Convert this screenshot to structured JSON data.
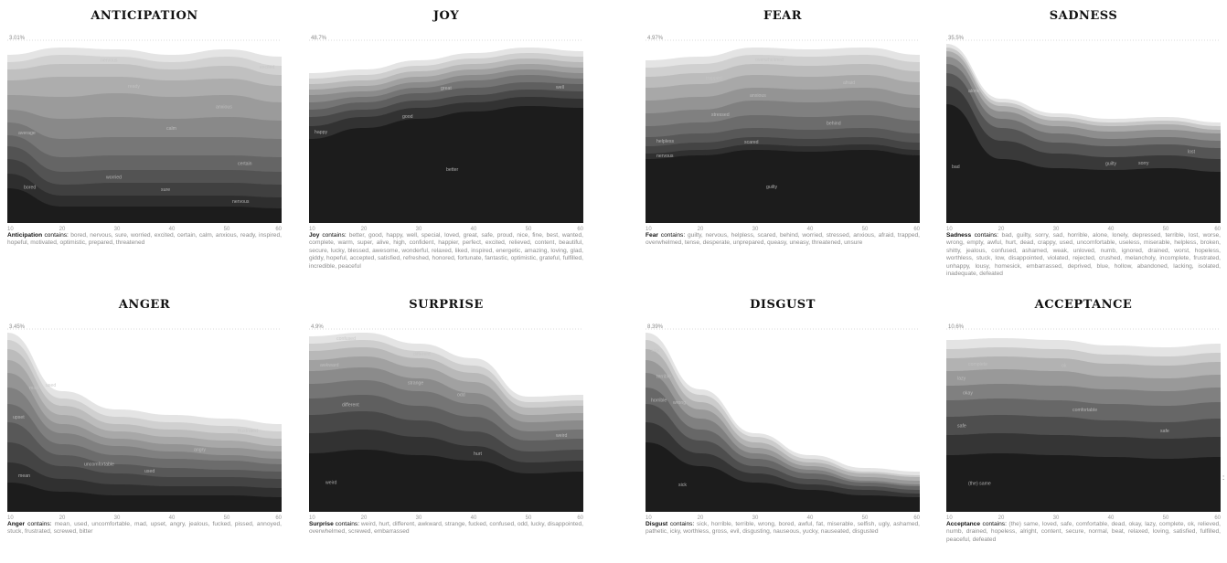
{
  "chart_data": [
    {
      "type": "area",
      "title": "ANTICIPATION",
      "max_label": "3.01%",
      "x": [
        10,
        20,
        30,
        40,
        50,
        60
      ],
      "boundaries": [
        [
          0.92,
          0.96,
          0.95,
          0.92,
          0.95,
          0.91
        ],
        [
          0.88,
          0.92,
          0.91,
          0.88,
          0.91,
          0.86
        ],
        [
          0.84,
          0.87,
          0.87,
          0.84,
          0.86,
          0.81
        ],
        [
          0.78,
          0.8,
          0.8,
          0.78,
          0.79,
          0.75
        ],
        [
          0.7,
          0.69,
          0.71,
          0.69,
          0.7,
          0.66
        ],
        [
          0.62,
          0.57,
          0.58,
          0.57,
          0.58,
          0.56
        ],
        [
          0.55,
          0.46,
          0.47,
          0.47,
          0.47,
          0.46
        ],
        [
          0.48,
          0.36,
          0.37,
          0.37,
          0.37,
          0.36
        ],
        [
          0.42,
          0.28,
          0.29,
          0.29,
          0.29,
          0.28
        ],
        [
          0.35,
          0.21,
          0.22,
          0.22,
          0.22,
          0.21
        ],
        [
          0.27,
          0.15,
          0.15,
          0.15,
          0.15,
          0.14
        ],
        [
          0.19,
          0.09,
          0.09,
          0.09,
          0.09,
          0.08
        ]
      ],
      "series_labels": [
        {
          "text": "nervous",
          "x": 27,
          "band": 2
        },
        {
          "text": "excited",
          "x": 56,
          "band": 2
        },
        {
          "text": "ready",
          "x": 32,
          "band": 4
        },
        {
          "text": "anxious",
          "x": 48,
          "band": 5
        },
        {
          "text": "calm",
          "x": 39,
          "band": 6
        },
        {
          "text": "average",
          "x": 12,
          "band": 7
        },
        {
          "text": "certain",
          "x": 52,
          "band": 8
        },
        {
          "text": "worried",
          "x": 28,
          "band": 9
        },
        {
          "text": "sure",
          "x": 38,
          "band": 10
        },
        {
          "text": "bored",
          "x": 13,
          "band": 11
        },
        {
          "text": "nervous",
          "x": 51,
          "band": 11
        }
      ],
      "description_term": "Anticipation",
      "description_contains": "contains:",
      "description_words": "bored, nervous, sure, worried, excited, certain, calm, anxious, ready, inspired, hopeful, motivated, optimistic, prepared, threatened"
    },
    {
      "type": "area",
      "title": "JOY",
      "max_label": "48.7%",
      "x": [
        10,
        20,
        30,
        40,
        50,
        60
      ],
      "boundaries": [
        [
          0.82,
          0.84,
          0.89,
          0.93,
          0.96,
          0.94
        ],
        [
          0.79,
          0.81,
          0.86,
          0.9,
          0.93,
          0.91
        ],
        [
          0.76,
          0.78,
          0.83,
          0.87,
          0.9,
          0.88
        ],
        [
          0.73,
          0.75,
          0.8,
          0.84,
          0.87,
          0.85
        ],
        [
          0.7,
          0.72,
          0.77,
          0.81,
          0.84,
          0.82
        ],
        [
          0.66,
          0.69,
          0.74,
          0.78,
          0.81,
          0.79
        ],
        [
          0.62,
          0.66,
          0.71,
          0.74,
          0.77,
          0.76
        ],
        [
          0.58,
          0.62,
          0.67,
          0.7,
          0.73,
          0.72
        ],
        [
          0.53,
          0.58,
          0.63,
          0.66,
          0.69,
          0.68
        ],
        [
          0.46,
          0.52,
          0.57,
          0.61,
          0.64,
          0.63
        ]
      ],
      "series_labels": [
        {
          "text": "great",
          "x": 34,
          "band": 6
        },
        {
          "text": "well",
          "x": 55,
          "band": 7
        },
        {
          "text": "happy",
          "x": 11,
          "band": 9
        },
        {
          "text": "good",
          "x": 27,
          "band": 9
        },
        {
          "text": "better",
          "x": 35,
          "band": 10
        }
      ],
      "description_term": "Joy",
      "description_contains": "contains:",
      "description_words": "better, good, happy, well, special, loved, great, safe, proud, nice, fine, best, wanted, complete, warm, super, alive, high, confident, happier, perfect, excited, relieved, content, beautiful, secure, lucky, blessed, awesome, wonderful, relaxed, liked, inspired, energetic, amazing, loving, glad, giddy, hopeful, accepted, satisfied, refreshed, honored, fortunate, fantastic, optimistic, grateful, fulfilled, incredible, peaceful"
    },
    {
      "type": "area",
      "title": "FEAR",
      "max_label": "4.97%",
      "x": [
        10,
        20,
        30,
        40,
        50,
        60
      ],
      "boundaries": [
        [
          0.89,
          0.91,
          0.96,
          0.95,
          0.96,
          0.92
        ],
        [
          0.85,
          0.87,
          0.92,
          0.91,
          0.92,
          0.88
        ],
        [
          0.8,
          0.82,
          0.87,
          0.86,
          0.87,
          0.83
        ],
        [
          0.74,
          0.76,
          0.81,
          0.8,
          0.81,
          0.77
        ],
        [
          0.67,
          0.69,
          0.74,
          0.73,
          0.74,
          0.7
        ],
        [
          0.6,
          0.62,
          0.67,
          0.66,
          0.67,
          0.63
        ],
        [
          0.53,
          0.55,
          0.59,
          0.58,
          0.59,
          0.56
        ],
        [
          0.47,
          0.49,
          0.52,
          0.51,
          0.52,
          0.49
        ],
        [
          0.42,
          0.44,
          0.47,
          0.46,
          0.47,
          0.44
        ],
        [
          0.38,
          0.4,
          0.43,
          0.42,
          0.43,
          0.4
        ],
        [
          0.35,
          0.37,
          0.4,
          0.39,
          0.4,
          0.37
        ]
      ],
      "series_labels": [
        {
          "text": "overwhelmed",
          "x": 30,
          "band": 2
        },
        {
          "text": "trapped",
          "x": 21,
          "band": 3
        },
        {
          "text": "afraid",
          "x": 46,
          "band": 4
        },
        {
          "text": "anxious",
          "x": 29,
          "band": 5
        },
        {
          "text": "stressed",
          "x": 22,
          "band": 6
        },
        {
          "text": "behind",
          "x": 43,
          "band": 7
        },
        {
          "text": "helpless",
          "x": 12,
          "band": 8
        },
        {
          "text": "scared",
          "x": 28,
          "band": 9
        },
        {
          "text": "nervous",
          "x": 12,
          "band": 10
        },
        {
          "text": "guilty",
          "x": 32,
          "band": 11
        }
      ],
      "description_term": "Fear",
      "description_contains": "contains:",
      "description_words": "guilty, nervous, helpless, scared, behind, worried, stressed, anxious, afraid, trapped, overwhelmed, tense, desperate, unprepared, queasy, uneasy, threatened, unsure"
    },
    {
      "type": "area",
      "title": "SADNESS",
      "max_label": "35.5%",
      "x": [
        10,
        20,
        30,
        40,
        50,
        60
      ],
      "boundaries": [
        [
          0.98,
          0.68,
          0.6,
          0.57,
          0.58,
          0.55
        ],
        [
          0.96,
          0.66,
          0.58,
          0.55,
          0.56,
          0.53
        ],
        [
          0.94,
          0.64,
          0.56,
          0.53,
          0.54,
          0.51
        ],
        [
          0.91,
          0.61,
          0.53,
          0.5,
          0.51,
          0.49
        ],
        [
          0.87,
          0.57,
          0.49,
          0.46,
          0.47,
          0.45
        ],
        [
          0.82,
          0.52,
          0.44,
          0.42,
          0.43,
          0.41
        ],
        [
          0.75,
          0.45,
          0.38,
          0.36,
          0.37,
          0.35
        ],
        [
          0.65,
          0.35,
          0.3,
          0.29,
          0.3,
          0.28
        ]
      ],
      "series_labels": [
        {
          "text": "alone",
          "x": 14,
          "band": 5
        },
        {
          "text": "lost",
          "x": 54,
          "band": 6
        },
        {
          "text": "sorry",
          "x": 45,
          "band": 7
        },
        {
          "text": "guilty",
          "x": 39,
          "band": 7
        },
        {
          "text": "bad",
          "x": 11,
          "band": 8
        }
      ],
      "description_term": "Sadness",
      "description_contains": "contains:",
      "description_words": "bad, guilty, sorry, sad, horrible, alone, lonely, depressed, terrible, lost, worse, wrong, empty, awful, hurt, dead, crappy, used, uncomfortable, useless, miserable, helpless, broken, shitty, jealous, confused, ashamed, weak, unloved, numb, ignored, drained, worst, hopeless, worthless, stuck, low, disappointed, violated, rejected, crushed, melancholy, incomplete, frustrated, unhappy, lousy, homesick, embarrassed, deprived, blue, hollow, abandoned, lacking, isolated, inadequate, defeated"
    },
    {
      "type": "area",
      "title": "ANGER",
      "max_label": "3.45%",
      "x": [
        10,
        20,
        30,
        40,
        50,
        60
      ],
      "boundaries": [
        [
          0.98,
          0.66,
          0.56,
          0.53,
          0.51,
          0.48
        ],
        [
          0.94,
          0.62,
          0.52,
          0.49,
          0.47,
          0.44
        ],
        [
          0.89,
          0.58,
          0.48,
          0.45,
          0.43,
          0.4
        ],
        [
          0.83,
          0.53,
          0.44,
          0.41,
          0.39,
          0.36
        ],
        [
          0.76,
          0.48,
          0.4,
          0.37,
          0.35,
          0.33
        ],
        [
          0.68,
          0.43,
          0.36,
          0.33,
          0.31,
          0.29
        ],
        [
          0.59,
          0.37,
          0.31,
          0.29,
          0.28,
          0.26
        ],
        [
          0.49,
          0.31,
          0.26,
          0.24,
          0.23,
          0.22
        ],
        [
          0.38,
          0.25,
          0.21,
          0.19,
          0.19,
          0.18
        ],
        [
          0.27,
          0.18,
          0.15,
          0.14,
          0.14,
          0.13
        ],
        [
          0.16,
          0.11,
          0.09,
          0.09,
          0.09,
          0.08
        ]
      ],
      "series_labels": [
        {
          "text": "used",
          "x": 17,
          "band": 2
        },
        {
          "text": "frustrated",
          "x": 52,
          "band": 2
        },
        {
          "text": "mad",
          "x": 14,
          "band": 4
        },
        {
          "text": "angry",
          "x": 44,
          "band": 5
        },
        {
          "text": "upset",
          "x": 11,
          "band": 7
        },
        {
          "text": "uncomfortable",
          "x": 24,
          "band": 8
        },
        {
          "text": "used",
          "x": 35,
          "band": 8
        },
        {
          "text": "mean",
          "x": 12,
          "band": 10
        }
      ],
      "description_term": "Anger",
      "description_contains": "contains:",
      "description_words": "mean, used, uncomfortable, mad, upset, angry, jealous, fucked, pissed, annoyed, stuck, frustrated, screwed, bitter"
    },
    {
      "type": "area",
      "title": "SURPRISE",
      "max_label": "4.9%",
      "x": [
        10,
        20,
        30,
        40,
        50,
        60
      ],
      "boundaries": [
        [
          0.96,
          0.98,
          0.92,
          0.84,
          0.63,
          0.64
        ],
        [
          0.92,
          0.94,
          0.88,
          0.8,
          0.6,
          0.61
        ],
        [
          0.88,
          0.9,
          0.84,
          0.76,
          0.57,
          0.58
        ],
        [
          0.83,
          0.85,
          0.79,
          0.71,
          0.53,
          0.54
        ],
        [
          0.77,
          0.79,
          0.73,
          0.65,
          0.49,
          0.5
        ],
        [
          0.7,
          0.72,
          0.66,
          0.59,
          0.44,
          0.45
        ],
        [
          0.62,
          0.64,
          0.58,
          0.52,
          0.39,
          0.4
        ],
        [
          0.53,
          0.55,
          0.5,
          0.44,
          0.33,
          0.34
        ],
        [
          0.43,
          0.45,
          0.41,
          0.36,
          0.27,
          0.28
        ],
        [
          0.32,
          0.34,
          0.31,
          0.28,
          0.21,
          0.22
        ]
      ],
      "series_labels": [
        {
          "text": "confused",
          "x": 15,
          "band": 1
        },
        {
          "text": "different",
          "x": 29,
          "band": 2
        },
        {
          "text": "awkward",
          "x": 12,
          "band": 4
        },
        {
          "text": "strange",
          "x": 28,
          "band": 5
        },
        {
          "text": "odd",
          "x": 37,
          "band": 5
        },
        {
          "text": "weird",
          "x": 55,
          "band": 6
        },
        {
          "text": "different",
          "x": 16,
          "band": 7
        },
        {
          "text": "hurt",
          "x": 40,
          "band": 9
        },
        {
          "text": "weird",
          "x": 13,
          "band": 10
        }
      ],
      "description_term": "Surprise",
      "description_contains": "contains:",
      "description_words": "weird, hurt, different, awkward, strange, fucked, confused, odd, lucky, disappointed, overwhelmed, screwed, embarrassed"
    },
    {
      "type": "area",
      "title": "DISGUST",
      "max_label": "8.39%",
      "x": [
        10,
        20,
        30,
        40,
        50,
        60
      ],
      "boundaries": [
        [
          0.98,
          0.67,
          0.43,
          0.31,
          0.24,
          0.22
        ],
        [
          0.94,
          0.64,
          0.41,
          0.29,
          0.22,
          0.2
        ],
        [
          0.89,
          0.6,
          0.38,
          0.27,
          0.21,
          0.19
        ],
        [
          0.83,
          0.56,
          0.35,
          0.25,
          0.19,
          0.17
        ],
        [
          0.76,
          0.51,
          0.32,
          0.23,
          0.17,
          0.15
        ],
        [
          0.68,
          0.45,
          0.29,
          0.21,
          0.16,
          0.14
        ],
        [
          0.59,
          0.39,
          0.25,
          0.18,
          0.14,
          0.12
        ],
        [
          0.49,
          0.32,
          0.21,
          0.15,
          0.12,
          0.1
        ],
        [
          0.38,
          0.25,
          0.16,
          0.12,
          0.09,
          0.08
        ]
      ],
      "series_labels": [
        {
          "text": "sick",
          "x": 11,
          "band": 2
        },
        {
          "text": "terrible",
          "x": 12,
          "band": 4
        },
        {
          "text": "wrong",
          "x": 15,
          "band": 5
        },
        {
          "text": "horrible",
          "x": 11,
          "band": 6
        },
        {
          "text": "sick",
          "x": 16,
          "band": 9
        }
      ],
      "description_term": "Disgust",
      "description_contains": "contains:",
      "description_words": "sick, horrible, terrible, wrong, bored, awful, fat, miserable, selfish, ugly, ashamed, pathetic, icky, worthless, gross, evil, disgusting, nauseous, yucky, nauseated, disgusted"
    },
    {
      "type": "area",
      "title": "ACCEPTANCE",
      "max_label": "10.6%",
      "x": [
        10,
        20,
        30,
        40,
        50,
        60
      ],
      "boundaries": [
        [
          0.94,
          0.95,
          0.94,
          0.91,
          0.9,
          0.92
        ],
        [
          0.89,
          0.9,
          0.89,
          0.86,
          0.85,
          0.87
        ],
        [
          0.84,
          0.85,
          0.84,
          0.81,
          0.8,
          0.82
        ],
        [
          0.77,
          0.78,
          0.77,
          0.74,
          0.73,
          0.75
        ],
        [
          0.69,
          0.7,
          0.69,
          0.67,
          0.66,
          0.68
        ],
        [
          0.61,
          0.62,
          0.61,
          0.59,
          0.58,
          0.6
        ],
        [
          0.52,
          0.53,
          0.52,
          0.5,
          0.49,
          0.51
        ],
        [
          0.42,
          0.43,
          0.42,
          0.41,
          0.4,
          0.41
        ],
        [
          0.31,
          0.32,
          0.31,
          0.3,
          0.29,
          0.3
        ]
      ],
      "series_labels": [
        {
          "text": "complete",
          "x": 14,
          "band": 3
        },
        {
          "text": "ok",
          "x": 31,
          "band": 3
        },
        {
          "text": "lazy",
          "x": 12,
          "band": 4
        },
        {
          "text": "okay",
          "x": 13,
          "band": 5
        },
        {
          "text": "comfortable",
          "x": 33,
          "band": 6
        },
        {
          "text": "safe",
          "x": 12,
          "band": 7
        },
        {
          "text": "safe",
          "x": 49,
          "band": 7
        },
        {
          "text": "(the) same",
          "x": 14,
          "band": 9
        }
      ],
      "description_term": "Acceptance",
      "description_contains": "contains:",
      "description_words": "(the) same, loved, safe, comfortable, dead, okay, lazy, complete, ok, relieved, numb, drained, hopeless, alright, content, secure, normal, beat, relaxed, loving, satisfied, fulfilled, peaceful, defeated"
    }
  ],
  "edge_mark": ":"
}
